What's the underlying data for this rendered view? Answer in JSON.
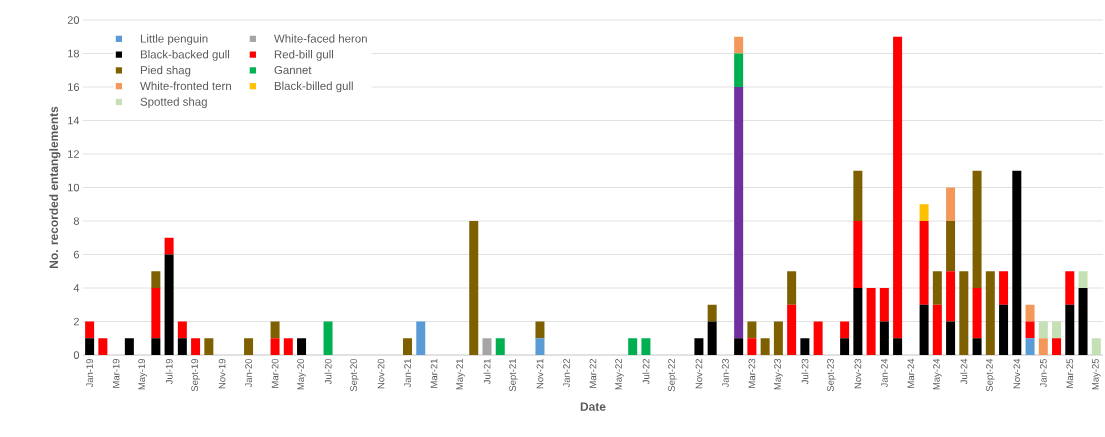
{
  "chart_data": {
    "type": "bar",
    "stacked": true,
    "xlabel": "Date",
    "ylabel": "No. recorded entanglements",
    "categories": [
      "Jan-19",
      null,
      "Mar-19",
      null,
      "May-19",
      null,
      "Jul-19",
      null,
      "Sept-19",
      null,
      "Nov-19",
      null,
      "Jan-20",
      null,
      "Mar-20",
      null,
      "May-20",
      null,
      "Jul-20",
      null,
      "Sept-20",
      null,
      "Nov-20",
      null,
      "Jan-21",
      null,
      "Mar-21",
      null,
      "May-21",
      null,
      "Jul-21",
      null,
      "Sept-21",
      null,
      "Nov-21",
      null,
      "Jan-22",
      null,
      "Mar-22",
      null,
      "May-22",
      null,
      "Jul-22",
      null,
      "Sept-22",
      null,
      "Nov-22",
      null,
      "Jan-23",
      null,
      "Mar-23",
      null,
      "May-23",
      null,
      "Jul-23",
      null,
      "Sept-23",
      null,
      "Nov-23",
      null,
      "Jan-24",
      null,
      "Mar-24",
      null,
      "May-24",
      null,
      "Jul-24",
      null,
      "Sept-24",
      null,
      "Nov-24",
      null,
      "Jan-25",
      null,
      "Mar-25",
      null,
      "May-25"
    ],
    "series": [
      {
        "name": "Little penguin",
        "color": "#5b9bd5",
        "values": [
          null,
          null,
          null,
          null,
          null,
          null,
          null,
          null,
          null,
          null,
          null,
          null,
          null,
          null,
          null,
          null,
          null,
          null,
          null,
          null,
          null,
          null,
          null,
          null,
          null,
          2,
          null,
          null,
          null,
          null,
          null,
          null,
          null,
          null,
          1,
          null,
          null,
          null,
          null,
          null,
          null,
          null,
          null,
          null,
          null,
          null,
          null,
          null,
          null,
          null,
          null,
          null,
          null,
          null,
          null,
          null,
          null,
          null,
          null,
          null,
          null,
          null,
          null,
          null,
          null,
          null,
          null,
          null,
          null,
          null,
          null,
          1,
          null,
          null,
          null,
          null,
          null
        ]
      },
      {
        "name": "White-faced heron",
        "color": "#a5a5a5",
        "values": [
          null,
          null,
          null,
          null,
          null,
          null,
          null,
          null,
          null,
          null,
          null,
          null,
          null,
          null,
          null,
          null,
          null,
          null,
          null,
          null,
          null,
          null,
          null,
          null,
          null,
          null,
          null,
          null,
          null,
          null,
          1,
          null,
          null,
          null,
          null,
          null,
          null,
          null,
          null,
          null,
          null,
          null,
          null,
          null,
          null,
          null,
          null,
          null,
          null,
          null,
          null,
          null,
          null,
          null,
          null,
          null,
          null,
          null,
          null,
          null,
          null,
          null,
          null,
          null,
          null,
          null,
          null,
          null,
          null,
          null,
          null,
          null,
          null,
          null,
          null,
          null,
          null
        ]
      },
      {
        "name": "Black-backed gull",
        "color": "#000000",
        "values": [
          1,
          null,
          null,
          1,
          null,
          1,
          6,
          1,
          null,
          null,
          null,
          null,
          null,
          null,
          null,
          null,
          1,
          null,
          null,
          null,
          null,
          null,
          null,
          null,
          null,
          null,
          null,
          null,
          null,
          null,
          null,
          null,
          null,
          null,
          null,
          null,
          null,
          null,
          null,
          null,
          null,
          null,
          null,
          null,
          null,
          null,
          1,
          2,
          null,
          1,
          null,
          null,
          null,
          null,
          1,
          null,
          null,
          1,
          4,
          null,
          2,
          1,
          null,
          3,
          null,
          2,
          null,
          1,
          null,
          3,
          11,
          null,
          null,
          null,
          3,
          4,
          null
        ]
      },
      {
        "name": "Red-bill gull",
        "color": "#ff0000",
        "values": [
          1,
          1,
          null,
          null,
          null,
          3,
          1,
          1,
          1,
          null,
          null,
          null,
          null,
          null,
          1,
          1,
          null,
          null,
          null,
          null,
          null,
          null,
          null,
          null,
          null,
          null,
          null,
          null,
          null,
          null,
          null,
          null,
          null,
          null,
          null,
          null,
          null,
          null,
          null,
          null,
          null,
          null,
          null,
          null,
          null,
          null,
          null,
          null,
          null,
          null,
          1,
          null,
          null,
          3,
          null,
          2,
          null,
          1,
          4,
          4,
          2,
          18,
          null,
          5,
          3,
          3,
          null,
          3,
          null,
          2,
          null,
          1,
          null,
          1,
          2,
          null,
          null
        ]
      },
      {
        "name": "Pied shag",
        "color": "#7f6000",
        "values": [
          null,
          null,
          null,
          null,
          null,
          1,
          null,
          null,
          null,
          1,
          null,
          null,
          1,
          null,
          1,
          null,
          null,
          null,
          null,
          null,
          null,
          null,
          null,
          null,
          1,
          null,
          null,
          null,
          null,
          8,
          null,
          null,
          null,
          null,
          1,
          null,
          null,
          null,
          null,
          null,
          null,
          null,
          null,
          null,
          null,
          null,
          null,
          1,
          null,
          null,
          1,
          1,
          2,
          2,
          null,
          null,
          null,
          null,
          3,
          null,
          null,
          null,
          null,
          null,
          2,
          3,
          5,
          7,
          5,
          null,
          null,
          null,
          null,
          null,
          null,
          null,
          null
        ]
      },
      {
        "color": "#7030a0",
        "values": [
          null,
          null,
          null,
          null,
          null,
          null,
          null,
          null,
          null,
          null,
          null,
          null,
          null,
          null,
          null,
          null,
          null,
          null,
          null,
          null,
          null,
          null,
          null,
          null,
          null,
          null,
          null,
          null,
          null,
          null,
          null,
          null,
          null,
          null,
          null,
          null,
          null,
          null,
          null,
          null,
          null,
          null,
          null,
          null,
          null,
          null,
          null,
          null,
          null,
          15,
          null,
          null,
          null,
          null,
          null,
          null,
          null,
          null,
          null,
          null,
          null,
          null,
          null,
          null,
          null,
          null,
          null,
          null,
          null,
          null,
          null,
          null,
          null,
          null,
          null,
          null,
          null
        ]
      },
      {
        "name": "Gannet",
        "color": "#00b050",
        "values": [
          null,
          null,
          null,
          null,
          null,
          null,
          null,
          null,
          null,
          null,
          null,
          null,
          null,
          null,
          null,
          null,
          null,
          null,
          2,
          null,
          null,
          null,
          null,
          null,
          null,
          null,
          null,
          null,
          null,
          null,
          null,
          1,
          null,
          null,
          null,
          null,
          null,
          null,
          null,
          null,
          null,
          1,
          1,
          null,
          null,
          null,
          null,
          null,
          null,
          2,
          null,
          null,
          null,
          null,
          null,
          null,
          null,
          null,
          null,
          null,
          null,
          null,
          null,
          null,
          null,
          null,
          null,
          null,
          null,
          null,
          null,
          null,
          null,
          null,
          null,
          null,
          null
        ]
      },
      {
        "name": "White-fronted tern",
        "color": "#f4975a",
        "values": [
          null,
          null,
          null,
          null,
          null,
          null,
          null,
          null,
          null,
          null,
          null,
          null,
          null,
          null,
          null,
          null,
          null,
          null,
          null,
          null,
          null,
          null,
          null,
          null,
          null,
          null,
          null,
          null,
          null,
          null,
          null,
          null,
          null,
          null,
          null,
          null,
          null,
          null,
          null,
          null,
          null,
          null,
          null,
          null,
          null,
          null,
          null,
          null,
          null,
          1,
          null,
          null,
          null,
          null,
          null,
          null,
          null,
          null,
          null,
          null,
          null,
          null,
          null,
          null,
          null,
          2,
          null,
          null,
          null,
          null,
          null,
          1,
          1,
          null,
          null,
          null,
          null
        ]
      },
      {
        "name": "Black-billed gull",
        "color": "#ffc000",
        "values": [
          null,
          null,
          null,
          null,
          null,
          null,
          null,
          null,
          null,
          null,
          null,
          null,
          null,
          null,
          null,
          null,
          null,
          null,
          null,
          null,
          null,
          null,
          null,
          null,
          null,
          null,
          null,
          null,
          null,
          null,
          null,
          null,
          null,
          null,
          null,
          null,
          null,
          null,
          null,
          null,
          null,
          null,
          null,
          null,
          null,
          null,
          null,
          null,
          null,
          null,
          null,
          null,
          null,
          null,
          null,
          null,
          null,
          null,
          null,
          null,
          null,
          null,
          null,
          1,
          null,
          null,
          null,
          null,
          null,
          null,
          null,
          null,
          null,
          null,
          null,
          null,
          null
        ]
      },
      {
        "name": "Spotted shag",
        "color": "#c5e0b4",
        "values": [
          null,
          null,
          null,
          null,
          null,
          null,
          null,
          null,
          null,
          null,
          null,
          null,
          null,
          null,
          null,
          null,
          null,
          null,
          null,
          null,
          null,
          null,
          null,
          null,
          null,
          null,
          null,
          null,
          null,
          null,
          null,
          null,
          null,
          null,
          null,
          null,
          null,
          null,
          null,
          null,
          null,
          null,
          null,
          null,
          null,
          null,
          null,
          null,
          null,
          null,
          null,
          null,
          null,
          null,
          null,
          null,
          null,
          null,
          null,
          null,
          null,
          null,
          null,
          null,
          null,
          null,
          null,
          null,
          null,
          null,
          null,
          null,
          1,
          1,
          null,
          1,
          1
        ]
      }
    ],
    "ylim": [
      0,
      20
    ],
    "yticks": [
      0,
      2,
      4,
      6,
      8,
      10,
      12,
      14,
      16,
      18,
      20
    ],
    "grid": "y",
    "legend": "top left"
  }
}
